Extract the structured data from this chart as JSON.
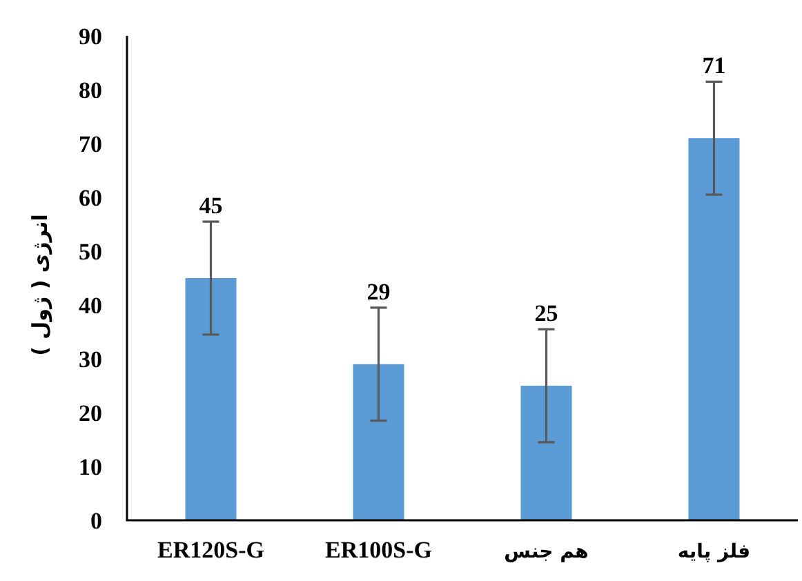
{
  "chart_data": {
    "type": "bar",
    "ylabel": "انرژی ( ژول )",
    "categories": [
      "ER120S-G",
      "ER100S-G",
      "هم جنس",
      "فلز پایه"
    ],
    "values": [
      45,
      29,
      25,
      71
    ],
    "errors": [
      10.5,
      10.5,
      10.5,
      10.5
    ],
    "color": "#5b9bd5",
    "value_labels": [
      "45",
      "29",
      "25",
      "71"
    ],
    "ylim": [
      0,
      90
    ],
    "yticks": [
      0,
      10,
      20,
      30,
      40,
      50,
      60,
      70,
      80,
      90
    ]
  }
}
